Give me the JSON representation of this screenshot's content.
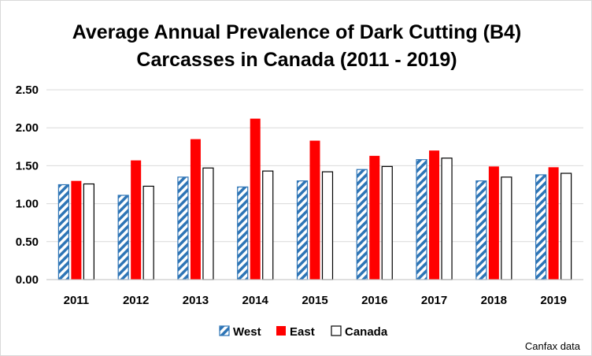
{
  "chart_data": {
    "type": "bar",
    "title_line1": "Average Annual Prevalence of Dark Cutting (B4)",
    "title_line2": "Carcasses in Canada (2011 - 2019)",
    "categories": [
      "2011",
      "2012",
      "2013",
      "2014",
      "2015",
      "2016",
      "2017",
      "2018",
      "2019"
    ],
    "series": [
      {
        "name": "West",
        "color": "#2e75b6",
        "pattern": "diagonal-hatch",
        "values": [
          1.25,
          1.11,
          1.35,
          1.22,
          1.3,
          1.45,
          1.58,
          1.3,
          1.38
        ]
      },
      {
        "name": "East",
        "color": "#ff0000",
        "pattern": "solid",
        "values": [
          1.3,
          1.57,
          1.85,
          2.12,
          1.83,
          1.63,
          1.7,
          1.49,
          1.48
        ]
      },
      {
        "name": "Canada",
        "color": "#ffffff",
        "pattern": "outline",
        "values": [
          1.26,
          1.23,
          1.47,
          1.43,
          1.42,
          1.49,
          1.6,
          1.35,
          1.4
        ]
      }
    ],
    "y_ticks": [
      "0.00",
      "0.50",
      "1.00",
      "1.50",
      "2.00",
      "2.50"
    ],
    "ylim": [
      0,
      2.5
    ],
    "grid": true,
    "legend_position": "bottom",
    "source": "Canfax data"
  }
}
